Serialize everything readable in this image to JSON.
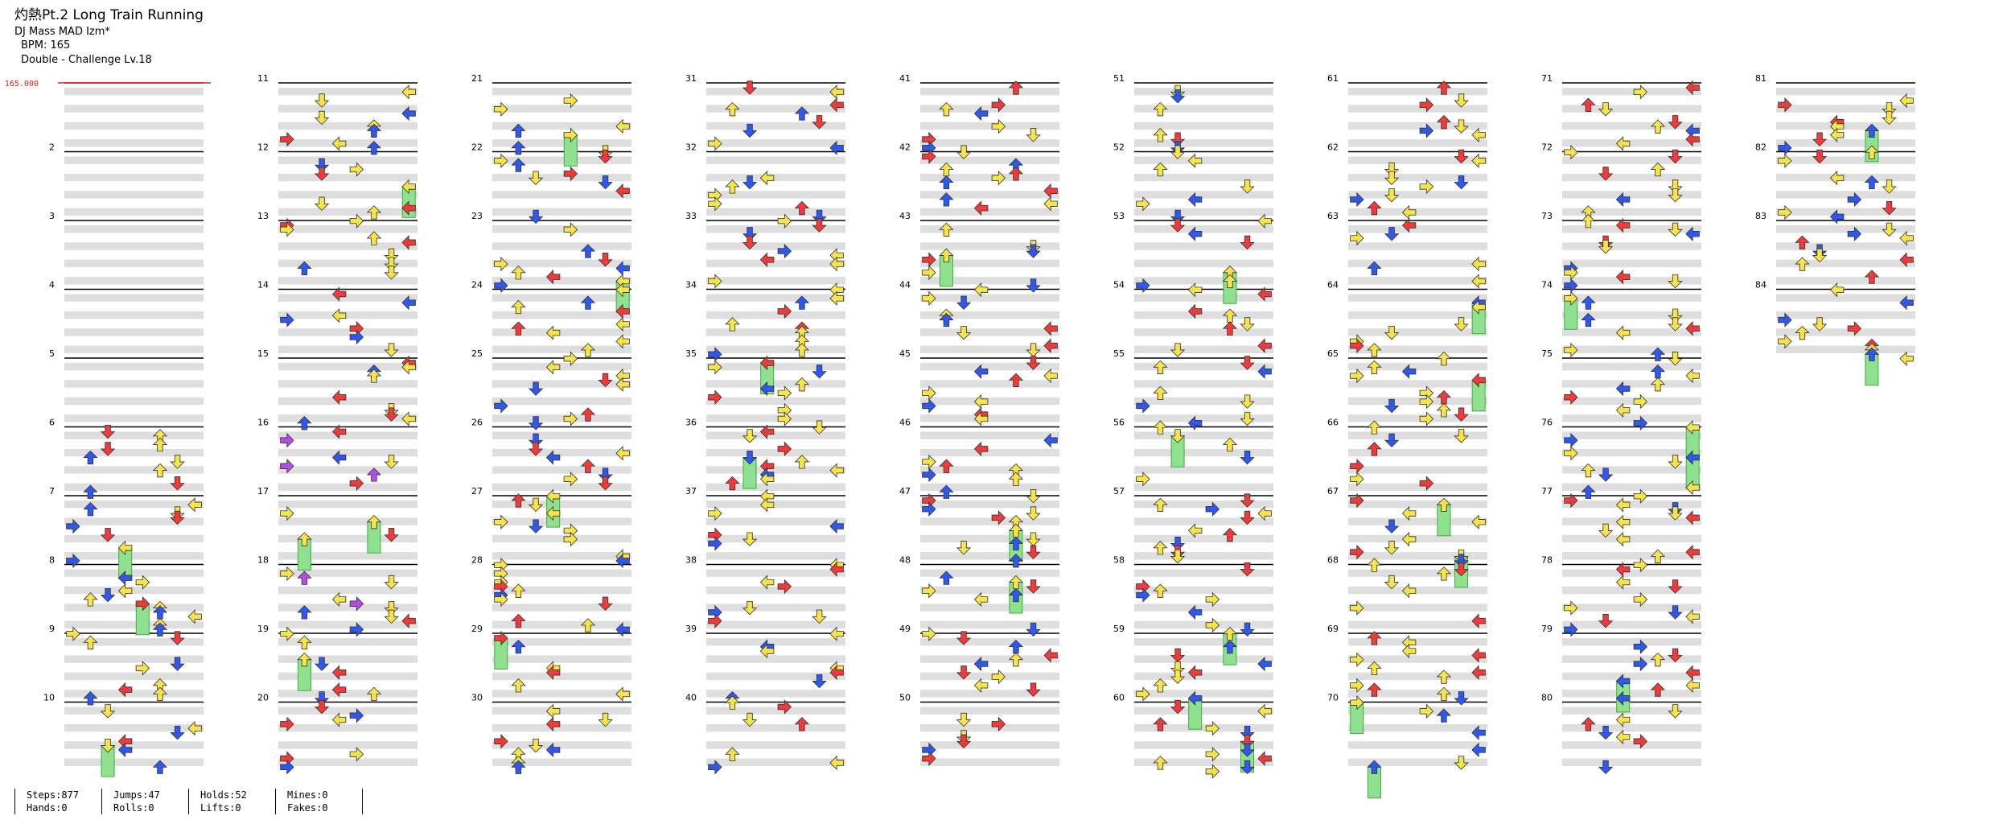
{
  "header": {
    "title": "灼熱Pt.2 Long Train Running",
    "artist": "DJ Mass MAD Izm*",
    "bpm": "BPM: 165",
    "difficulty": "Double - Challenge  Lv.18"
  },
  "bpm_marker": "165.000",
  "colors": {
    "quarter": "#f23a3a",
    "eighth": "#2f58f0",
    "sixteenth": "#f7e34a",
    "triplet": "#b44ce8",
    "hold": "#8fe08f",
    "stripe": "#dedede",
    "bpm": "#e02020"
  },
  "chart_data": {
    "type": "stepchart",
    "measures": 84,
    "measures_per_column": 10,
    "columns": 9,
    "lanes": 8,
    "measure_numbers": [
      "",
      "2",
      "3",
      "4",
      "5",
      "6",
      "7",
      "8",
      "9",
      "10",
      "11",
      "12",
      "13",
      "14",
      "15",
      "16",
      "17",
      "18",
      "19",
      "20",
      "21",
      "22",
      "23",
      "24",
      "25",
      "26",
      "27",
      "28",
      "29",
      "30",
      "31",
      "32",
      "33",
      "34",
      "35",
      "36",
      "37",
      "38",
      "39",
      "40",
      "41",
      "42",
      "43",
      "44",
      "45",
      "46",
      "47",
      "48",
      "49",
      "50",
      "51",
      "52",
      "53",
      "54",
      "55",
      "56",
      "57",
      "58",
      "59",
      "60",
      "61",
      "62",
      "63",
      "64",
      "65",
      "66",
      "67",
      "68",
      "69",
      "70",
      "71",
      "72",
      "73",
      "74",
      "75",
      "76",
      "77",
      "78",
      "79",
      "80",
      "81",
      "82",
      "83",
      "84"
    ]
  },
  "stats": [
    {
      "top": "Steps:877",
      "bottom": "Hands:0"
    },
    {
      "top": "Jumps:47",
      "bottom": "Rolls:0"
    },
    {
      "top": "Holds:52",
      "bottom": "Lifts:0"
    },
    {
      "top": "Mines:0",
      "bottom": "Fakes:0"
    }
  ]
}
